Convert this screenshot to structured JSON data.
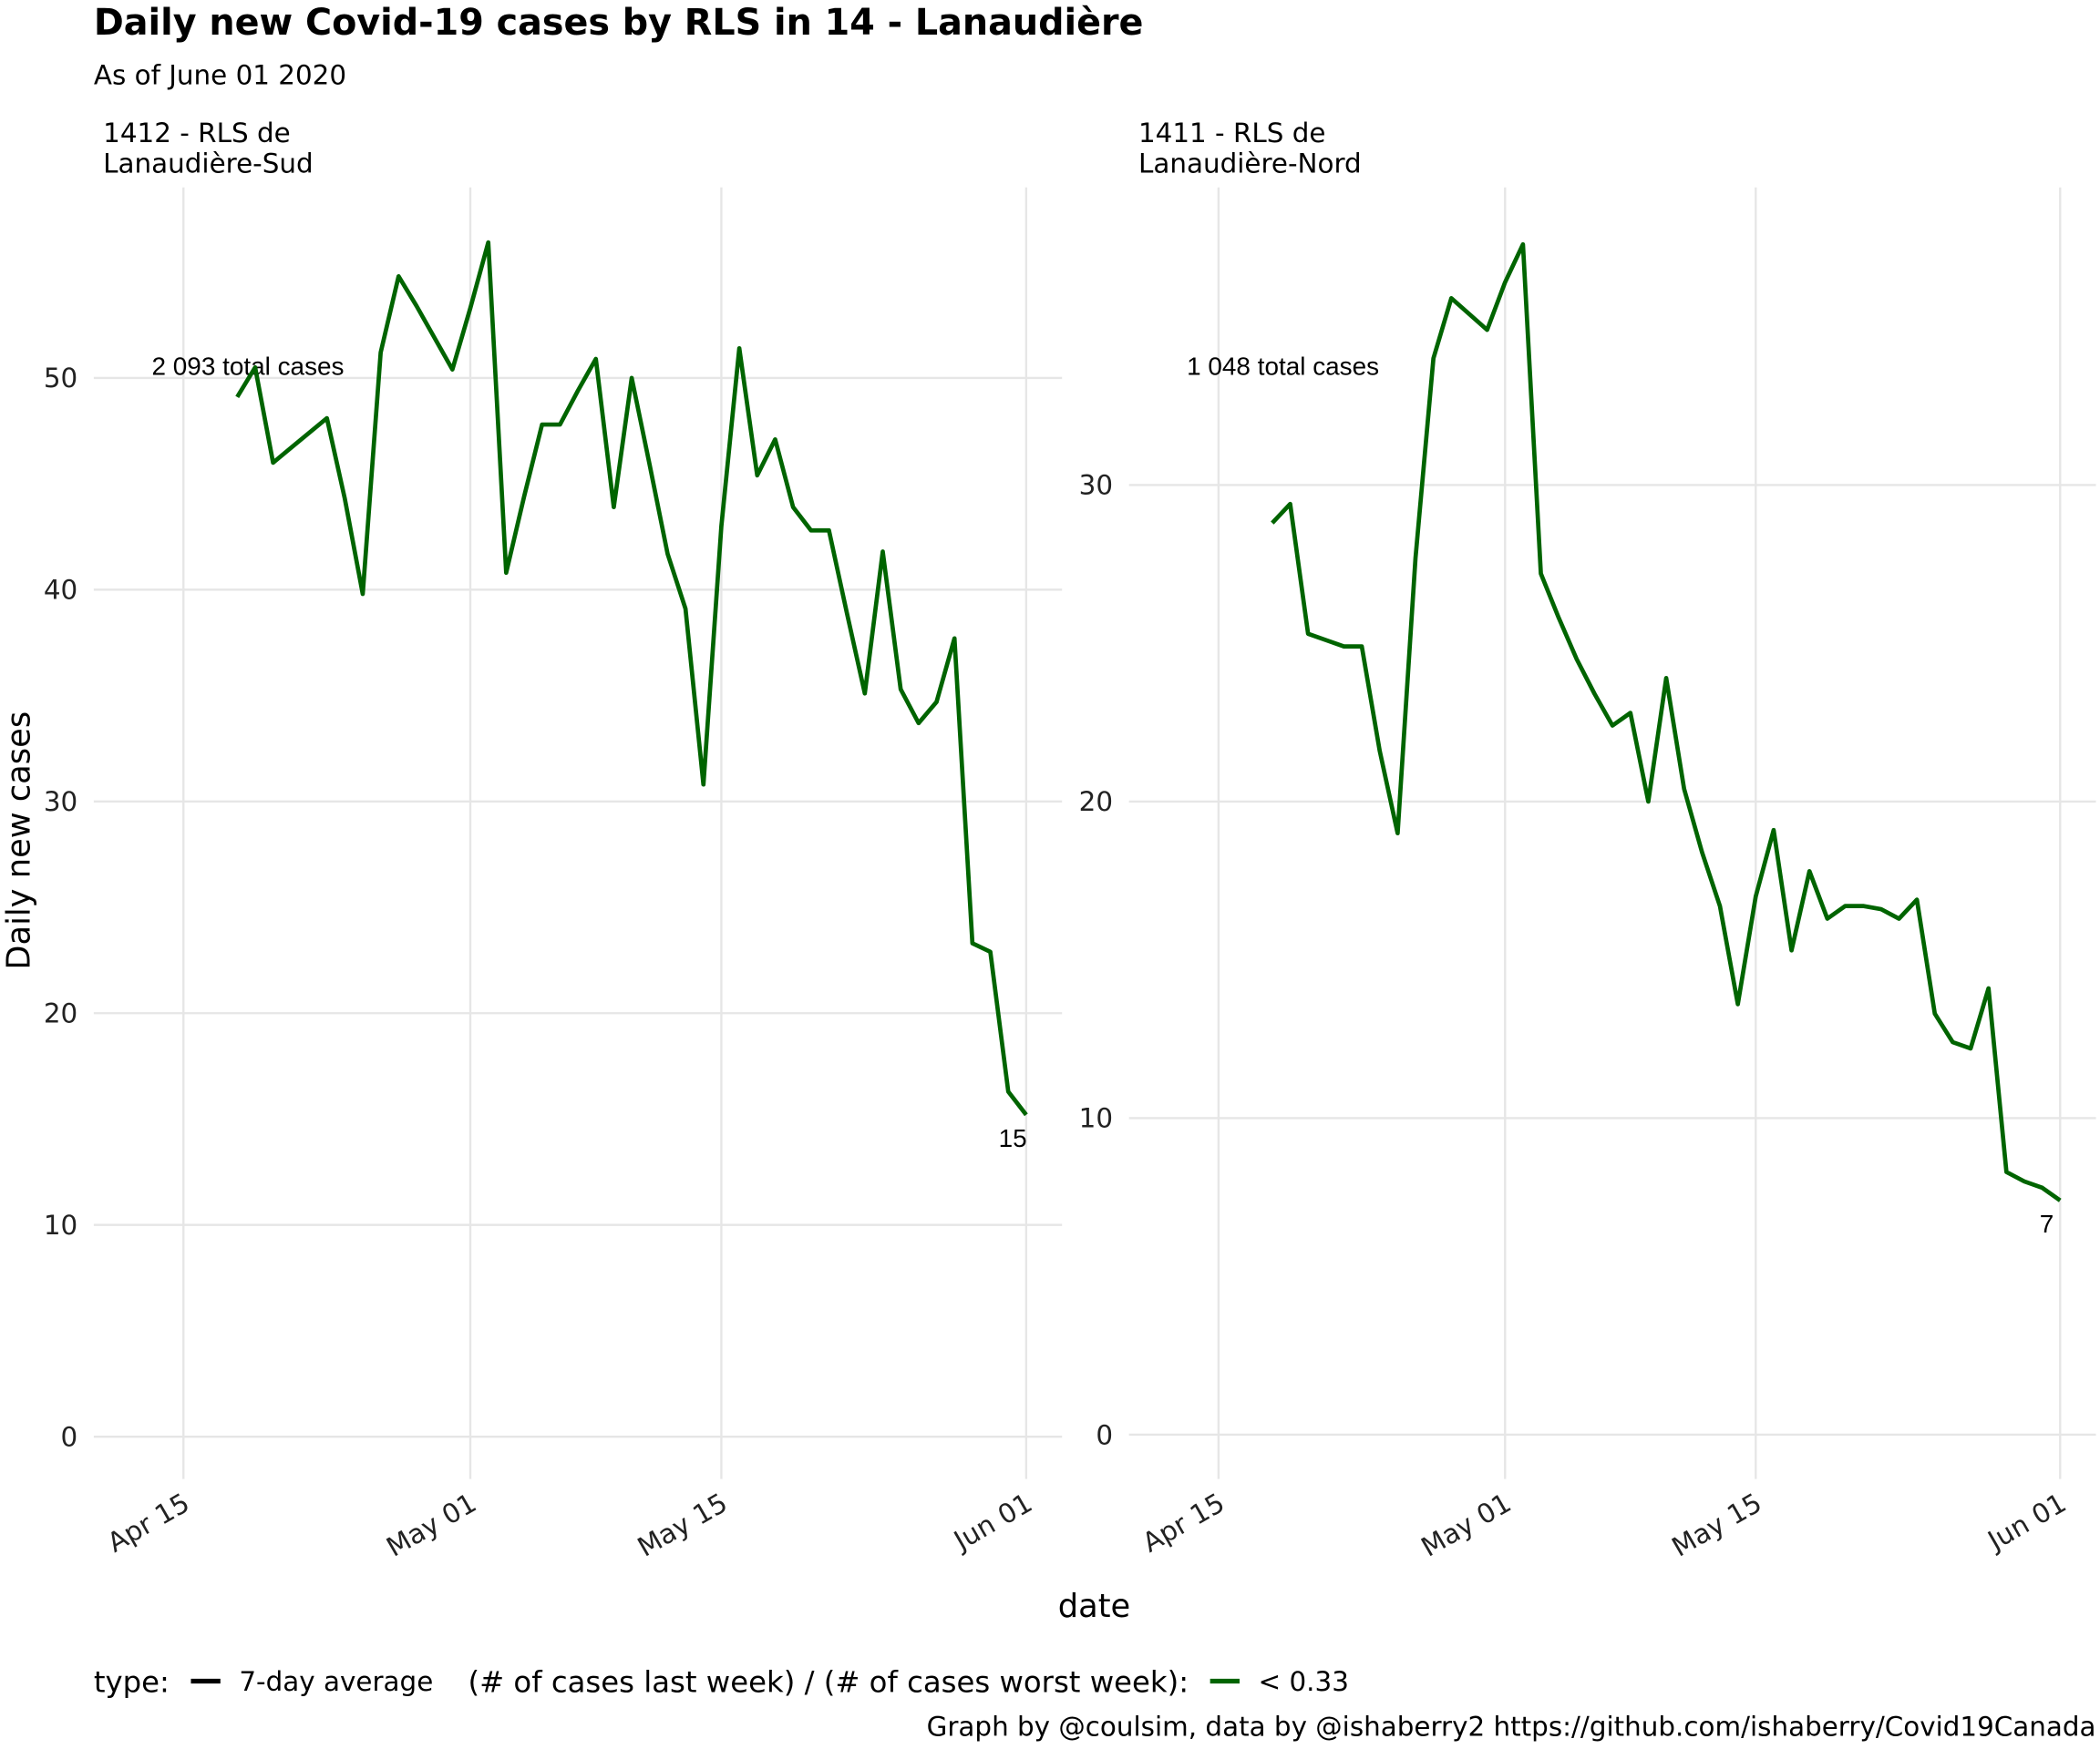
{
  "title": "Daily new Covid-19 cases by RLS in 14 - Lanaudière",
  "subtitle": "As of June 01 2020",
  "x_label": "date",
  "y_label": "Daily new cases",
  "caption": "Graph by @coulsim, data by @ishaberry2 https://github.com/ishaberry/Covid19Canada",
  "legend": [
    {
      "title": "type:",
      "items": [
        {
          "name": "7-day average",
          "color": "#000000"
        }
      ]
    },
    {
      "title": "(# of cases last week) / (# of cases worst week):",
      "items": [
        {
          "name": "< 0.33",
          "color": "#006400"
        }
      ]
    }
  ],
  "chart_data": [
    {
      "type": "line",
      "title": [
        "1412 - RLS de",
        "Lanaudière-Sud"
      ],
      "annotation": "2 093 total cases",
      "x": [
        "Apr 18",
        "Apr 19",
        "Apr 20",
        "Apr 21",
        "Apr 22",
        "Apr 23",
        "Apr 24",
        "Apr 25",
        "Apr 26",
        "Apr 27",
        "Apr 28",
        "Apr 29",
        "Apr 30",
        "May 01",
        "May 02",
        "May 03",
        "May 04",
        "May 05",
        "May 06",
        "May 07",
        "May 08",
        "May 09",
        "May 10",
        "May 11",
        "May 12",
        "May 13",
        "May 14",
        "May 15",
        "May 16",
        "May 17",
        "May 18",
        "May 19",
        "May 20",
        "May 21",
        "May 22",
        "May 23",
        "May 24",
        "May 25",
        "May 26",
        "May 27",
        "May 28",
        "May 29",
        "May 30",
        "May 31",
        "Jun 01"
      ],
      "series": [
        {
          "color": "#006400",
          "values": [
            49.1,
            50.5,
            46,
            46.7,
            47.4,
            48.1,
            44.3,
            39.8,
            51.2,
            54.8,
            53.4,
            51.9,
            50.4,
            53.3,
            56.4,
            40.8,
            44.4,
            47.8,
            47.8,
            49.4,
            50.9,
            43.9,
            50,
            45.9,
            41.7,
            39.1,
            30.8,
            43,
            51.4,
            45.4,
            47.1,
            43.9,
            42.8,
            42.8,
            38.9,
            35.1,
            41.8,
            35.3,
            33.7,
            34.7,
            37.7,
            23.3,
            22.9,
            16.3,
            15.2
          ],
          "value_labels": [
            null,
            null,
            null,
            null,
            null,
            null,
            null,
            null,
            null,
            null,
            null,
            null,
            null,
            null,
            null,
            null,
            null,
            null,
            null,
            null,
            null,
            null,
            null,
            null,
            null,
            null,
            null,
            null,
            null,
            null,
            null,
            null,
            null,
            null,
            null,
            null,
            null,
            null,
            null,
            null,
            null,
            null,
            null,
            null,
            "15"
          ]
        }
      ],
      "xlim": [
        "Apr 10",
        "Jun 03"
      ],
      "xticks": [
        "Apr 15",
        "May 01",
        "May 15",
        "Jun 01"
      ],
      "ylim": [
        -2,
        59
      ],
      "yticks": [
        0,
        10,
        20,
        30,
        40,
        50
      ],
      "grid": true
    },
    {
      "type": "line",
      "title": [
        "1411 - RLS de",
        "Lanaudière-Nord"
      ],
      "annotation": "1 048 total cases",
      "x": [
        "Apr 18",
        "Apr 19",
        "Apr 20",
        "Apr 21",
        "Apr 22",
        "Apr 23",
        "Apr 24",
        "Apr 25",
        "Apr 26",
        "Apr 27",
        "Apr 28",
        "Apr 29",
        "Apr 30",
        "May 01",
        "May 02",
        "May 03",
        "May 04",
        "May 05",
        "May 06",
        "May 07",
        "May 08",
        "May 09",
        "May 10",
        "May 11",
        "May 12",
        "May 13",
        "May 14",
        "May 15",
        "May 16",
        "May 17",
        "May 18",
        "May 19",
        "May 20",
        "May 21",
        "May 22",
        "May 23",
        "May 24",
        "May 25",
        "May 26",
        "May 27",
        "May 28",
        "May 29",
        "May 30",
        "May 31",
        "Jun 01"
      ],
      "series": [
        {
          "color": "#006400",
          "values": [
            28.8,
            29.4,
            25.3,
            25.1,
            24.9,
            24.9,
            21.6,
            19,
            27.7,
            34,
            35.9,
            35.4,
            34.9,
            36.4,
            37.6,
            27.2,
            25.8,
            24.5,
            23.4,
            22.4,
            22.8,
            20,
            23.9,
            20.4,
            18.4,
            16.7,
            13.6,
            17,
            19.1,
            15.3,
            17.8,
            16.3,
            16.7,
            16.7,
            16.6,
            16.3,
            16.9,
            13.3,
            12.4,
            12.2,
            14.1,
            8.3,
            8,
            7.8,
            7.4
          ],
          "value_labels": [
            null,
            null,
            null,
            null,
            null,
            null,
            null,
            null,
            null,
            null,
            null,
            null,
            null,
            null,
            null,
            null,
            null,
            null,
            null,
            null,
            null,
            null,
            null,
            null,
            null,
            null,
            null,
            null,
            null,
            null,
            null,
            null,
            null,
            null,
            null,
            null,
            null,
            null,
            null,
            null,
            null,
            null,
            null,
            null,
            "7"
          ]
        }
      ],
      "xlim": [
        "Apr 10",
        "Jun 03"
      ],
      "xticks": [
        "Apr 15",
        "May 01",
        "May 15",
        "Jun 01"
      ],
      "ylim": [
        -1.4,
        39.4
      ],
      "yticks": [
        0,
        10,
        20,
        30
      ],
      "grid": true
    }
  ]
}
